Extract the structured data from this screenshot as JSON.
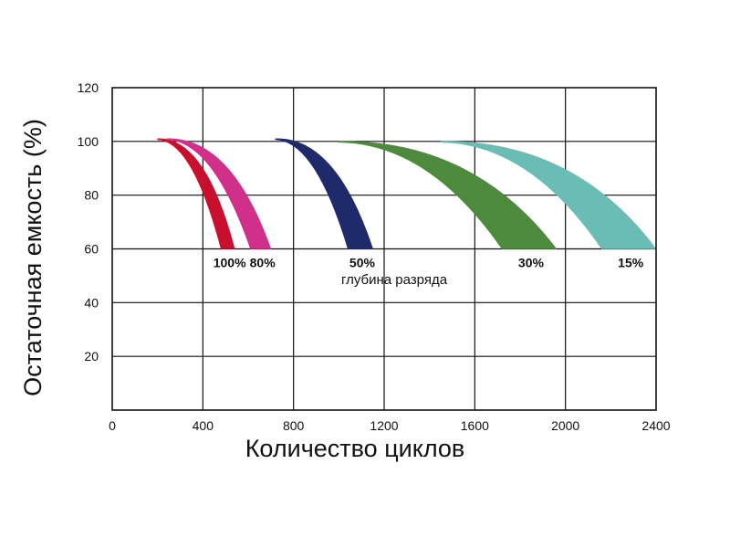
{
  "chart_data": {
    "type": "area",
    "xlabel": "Количество циклов",
    "ylabel": "Остаточная емкость (%)",
    "xlim": [
      0,
      2400
    ],
    "ylim": [
      0,
      120
    ],
    "x_ticks": [
      "0",
      "400",
      "800",
      "1200",
      "1600",
      "2000",
      "2400"
    ],
    "y_ticks": [
      "20",
      "40",
      "60",
      "80",
      "100",
      "120"
    ],
    "grid": true,
    "annotation": "глубина разряда",
    "series": [
      {
        "name": "100%",
        "color": "#c8102e",
        "start_x": 200,
        "start_y": 101,
        "end_low": 480,
        "end_high": 540,
        "end_y": 60
      },
      {
        "name": "80%",
        "color": "#d0308a",
        "start_x": 240,
        "start_y": 101,
        "end_low": 610,
        "end_high": 700,
        "end_y": 60
      },
      {
        "name": "50%",
        "color": "#1f2a6b",
        "start_x": 720,
        "start_y": 101,
        "end_low": 1040,
        "end_high": 1150,
        "end_y": 60
      },
      {
        "name": "30%",
        "color": "#4e8a3e",
        "start_x": 1000,
        "start_y": 100,
        "end_low": 1720,
        "end_high": 1960,
        "end_y": 60
      },
      {
        "name": "15%",
        "color": "#6bbcb4",
        "start_x": 1450,
        "start_y": 100,
        "end_low": 2160,
        "end_high": 2400,
        "end_y": 60
      }
    ]
  }
}
